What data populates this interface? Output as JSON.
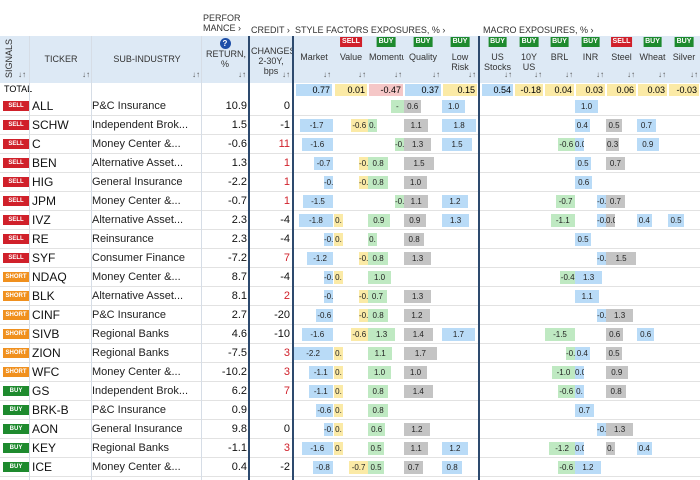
{
  "groups": {
    "performance": "PERFOR MANCE",
    "credit": "CREDIT",
    "style": "STYLE FACTORS EXPOSURES, %",
    "macro": "MACRO EXPOSURES, %"
  },
  "headers": {
    "signals": "SIGNALS",
    "ticker": "TICKER",
    "sub_industry": "SUB-INDUSTRY",
    "return": "RETURN, %",
    "changes": "CHANGES 2-30Y, bps",
    "style": [
      {
        "label": "Market",
        "tag": ""
      },
      {
        "label": "Value",
        "tag": "SELL"
      },
      {
        "label": "Momentum",
        "tag": "BUY"
      },
      {
        "label": "Quality",
        "tag": "BUY"
      },
      {
        "label": "Low Risk",
        "tag": "BUY"
      }
    ],
    "macro": [
      {
        "label": "US Stocks",
        "tag": "BUY"
      },
      {
        "label": "10Y US",
        "tag": "BUY"
      },
      {
        "label": "BRL",
        "tag": "BUY"
      },
      {
        "label": "INR",
        "tag": "BUY"
      },
      {
        "label": "Steel",
        "tag": "SELL"
      },
      {
        "label": "Wheat",
        "tag": "BUY"
      },
      {
        "label": "Silver",
        "tag": "BUY"
      }
    ]
  },
  "total": {
    "label": "TOTAL",
    "style": [
      "0.77",
      "0.01",
      "-0.47",
      "0.37",
      "0.15"
    ],
    "macro": [
      "0.54",
      "-0.18",
      "0.04",
      "0.03",
      "0.06",
      "0.03",
      "-0.03"
    ]
  },
  "colors": {
    "header_bg": "#dde9f5",
    "divider": "#2d4a6e",
    "buy": "#1e8a2e",
    "sell": "#d0202a",
    "short": "#f0901e",
    "bar_blue": "#b9dbf7",
    "bar_green": "#bfe9c2",
    "bar_yellow": "#fbeaa6",
    "bar_grey": "#c4c4c4",
    "bar_pink": "#f5c7c7"
  },
  "rows": [
    {
      "signal": "SELL",
      "ticker": "ALL",
      "sub": "P&C Insurance",
      "ret": "10.9",
      "chg": "0",
      "style": [
        "",
        "",
        "-",
        "0.6",
        "1.0"
      ],
      "macro": [
        "",
        "",
        "",
        "1.0",
        "",
        "",
        ""
      ]
    },
    {
      "signal": "SELL",
      "ticker": "SCHW",
      "sub": "Independent Brok...",
      "ret": "1.5",
      "chg": "-1",
      "style": [
        "-1.7",
        "-0.6",
        "0.",
        "1.1",
        "1.8"
      ],
      "macro": [
        "",
        "",
        "",
        "0.4",
        "0.5",
        "0.7",
        ""
      ]
    },
    {
      "signal": "SELL",
      "ticker": "C",
      "sub": "Money Center &...",
      "ret": "-0.6",
      "chg": "11",
      "style": [
        "-1.6",
        "",
        "-0.",
        "1.3",
        "1.5"
      ],
      "macro": [
        "",
        "",
        "-0.6",
        "0.0",
        "0.3",
        "0.9",
        ""
      ]
    },
    {
      "signal": "SELL",
      "ticker": "BEN",
      "sub": "Alternative Asset...",
      "ret": "1.3",
      "chg": "1",
      "style": [
        "-0.7",
        "-0.",
        "0.8",
        "1.5",
        ""
      ],
      "macro": [
        "",
        "",
        "",
        "0.5",
        "0.7",
        "",
        ""
      ]
    },
    {
      "signal": "SELL",
      "ticker": "HIG",
      "sub": "General Insurance",
      "ret": "-2.2",
      "chg": "1",
      "style": [
        "-0.",
        "-0.",
        "0.8",
        "1.0",
        ""
      ],
      "macro": [
        "",
        "",
        "",
        "0.6",
        "",
        "",
        ""
      ]
    },
    {
      "signal": "SELL",
      "ticker": "JPM",
      "sub": "Money Center &...",
      "ret": "-0.7",
      "chg": "1",
      "style": [
        "-1.5",
        "",
        "-0.",
        "1.1",
        "1.2"
      ],
      "macro": [
        "",
        "",
        "-0.7",
        "-0.",
        "0.7",
        "",
        ""
      ]
    },
    {
      "signal": "SELL",
      "ticker": "IVZ",
      "sub": "Alternative Asset...",
      "ret": "2.3",
      "chg": "-4",
      "style": [
        "-1.8",
        "0.",
        "0.9",
        "0.9",
        "1.3"
      ],
      "macro": [
        "",
        "",
        "-1.1",
        "-0.",
        "0.0",
        "0.4",
        "0.5"
      ]
    },
    {
      "signal": "SELL",
      "ticker": "RE",
      "sub": "Reinsurance",
      "ret": "2.3",
      "chg": "-4",
      "style": [
        "-0.",
        "0.",
        "0.",
        "0.8",
        ""
      ],
      "macro": [
        "",
        "",
        "",
        "0.5",
        "",
        "",
        ""
      ]
    },
    {
      "signal": "SELL",
      "ticker": "SYF",
      "sub": "Consumer Finance",
      "ret": "-7.2",
      "chg": "7",
      "style": [
        "-1.2",
        "-0.",
        "0.8",
        "1.3",
        ""
      ],
      "macro": [
        "",
        "",
        "",
        "-0.",
        "1.5",
        "",
        ""
      ]
    },
    {
      "signal": "SHORT",
      "ticker": "NDAQ",
      "sub": "Money Center &...",
      "ret": "8.7",
      "chg": "-4",
      "style": [
        "-0.",
        "0.",
        "1.0",
        "",
        ""
      ],
      "macro": [
        "",
        "",
        "-0.4",
        "1.3",
        "",
        "",
        ""
      ]
    },
    {
      "signal": "SHORT",
      "ticker": "BLK",
      "sub": "Alternative Asset...",
      "ret": "8.1",
      "chg": "2",
      "style": [
        "-0.",
        "-0.",
        "0.7",
        "1.3",
        ""
      ],
      "macro": [
        "",
        "",
        "",
        "1.1",
        "",
        "",
        ""
      ]
    },
    {
      "signal": "SHORT",
      "ticker": "CINF",
      "sub": "P&C Insurance",
      "ret": "2.7",
      "chg": "-20",
      "style": [
        "-0.6",
        "-0.",
        "0.8",
        "1.2",
        ""
      ],
      "macro": [
        "",
        "",
        "",
        "-0.",
        "1.3",
        "",
        ""
      ]
    },
    {
      "signal": "SHORT",
      "ticker": "SIVB",
      "sub": "Regional Banks",
      "ret": "4.6",
      "chg": "-10",
      "style": [
        "-1.6",
        "-0.6",
        "1.3",
        "1.4",
        "1.7"
      ],
      "macro": [
        "",
        "",
        "-1.5",
        "",
        "0.6",
        "0.6",
        ""
      ]
    },
    {
      "signal": "SHORT",
      "ticker": "ZION",
      "sub": "Regional Banks",
      "ret": "-7.5",
      "chg": "3",
      "style": [
        "-2.2",
        "0.",
        "1.1",
        "1.7",
        ""
      ],
      "macro": [
        "",
        "",
        "-0.",
        "0.4",
        "0.5",
        "",
        ""
      ]
    },
    {
      "signal": "SHORT",
      "ticker": "WFC",
      "sub": "Money Center &...",
      "ret": "-10.2",
      "chg": "3",
      "style": [
        "-1.1",
        "0.",
        "1.0",
        "1.0",
        ""
      ],
      "macro": [
        "",
        "",
        "-1.0",
        "0.0",
        "0.9",
        "",
        ""
      ]
    },
    {
      "signal": "BUY",
      "ticker": "GS",
      "sub": "Independent Brok...",
      "ret": "6.2",
      "chg": "7",
      "style": [
        "-1.1",
        "0.",
        "0.8",
        "1.4",
        ""
      ],
      "macro": [
        "",
        "",
        "-0.6",
        "0.",
        "0.8",
        "",
        ""
      ]
    },
    {
      "signal": "BUY",
      "ticker": "BRK-B",
      "sub": "P&C Insurance",
      "ret": "0.9",
      "chg": "",
      "style": [
        "-0.6",
        "0.",
        "0.8",
        "",
        ""
      ],
      "macro": [
        "",
        "",
        "",
        "0.7",
        "",
        "",
        ""
      ]
    },
    {
      "signal": "BUY",
      "ticker": "AON",
      "sub": "General Insurance",
      "ret": "9.8",
      "chg": "0",
      "style": [
        "-0.",
        "0.",
        "0.6",
        "1.2",
        ""
      ],
      "macro": [
        "",
        "",
        "",
        "-0.",
        "1.3",
        "",
        ""
      ]
    },
    {
      "signal": "BUY",
      "ticker": "KEY",
      "sub": "Regional Banks",
      "ret": "-1.1",
      "chg": "3",
      "style": [
        "-1.6",
        "0.",
        "0.5",
        "1.1",
        "1.2"
      ],
      "macro": [
        "",
        "",
        "-1.2",
        "0.0",
        "0.",
        "0.4",
        ""
      ]
    },
    {
      "signal": "BUY",
      "ticker": "ICE",
      "sub": "Money Center &...",
      "ret": "0.4",
      "chg": "-2",
      "style": [
        "-0.8",
        "-0.7",
        "0.5",
        "0.7",
        "0.8"
      ],
      "macro": [
        "",
        "",
        "-0.6",
        "1.2",
        "",
        "",
        ""
      ]
    }
  ]
}
